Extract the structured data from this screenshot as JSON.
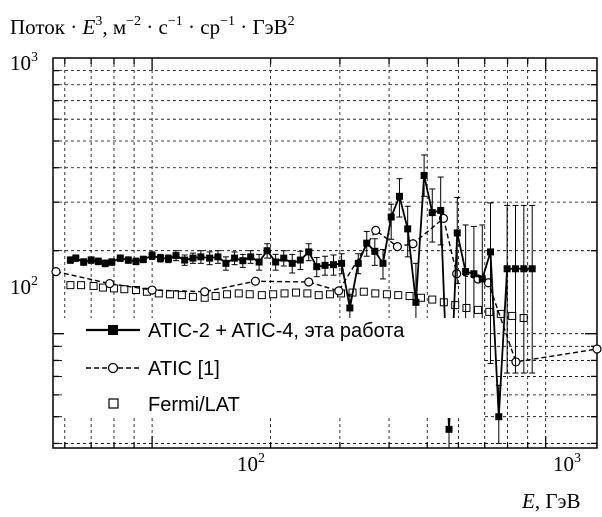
{
  "chart_data": {
    "type": "line",
    "scale": {
      "x": "log",
      "y": "log"
    },
    "xlim": [
      56,
      1350
    ],
    "ylim": [
      38.5,
      1000
    ],
    "grid": true,
    "legend_position": "bottom-left",
    "title": {
      "y_prefix": "Поток · ",
      "y_base": "E",
      "y_exp": "3",
      "y_units": ", м",
      "m_exp": "−2",
      "s_unit": " · с",
      "s_exp": "−1",
      "sr_unit": " · ср",
      "sr_exp": "−1",
      "gev_unit": " · ГэВ",
      "gev_exp": "2"
    },
    "xlabel": {
      "var": "E",
      "units": ", ГэВ"
    },
    "x_ticks": [
      {
        "value": 100,
        "base": "10",
        "exp": "2"
      },
      {
        "value": 1000,
        "base": "10",
        "exp": "3"
      }
    ],
    "y_ticks": [
      {
        "value": 100,
        "base": "10",
        "exp": "2"
      },
      {
        "value": 1000,
        "base": "10",
        "exp": "3"
      }
    ],
    "series": [
      {
        "name": "ATIC-2 + ATIC-4, эта работа",
        "style": "solid-filled-square",
        "color": "#000000",
        "x": [
          62,
          64,
          67,
          70,
          73,
          76,
          79,
          83,
          87,
          91,
          95,
          100,
          105,
          110,
          115,
          121,
          127,
          133,
          140,
          147,
          154,
          162,
          170,
          178,
          187,
          196,
          206,
          216,
          227,
          238,
          250,
          262,
          275,
          289,
          303,
          318,
          334,
          351,
          368,
          386,
          405,
          425,
          446,
          468,
          491,
          515,
          541,
          568,
          596,
          626,
          657,
          690,
          724,
          760,
          798,
          838,
          880,
          924
        ],
        "y": [
          185,
          188,
          182,
          185,
          183,
          180,
          182,
          188,
          185,
          183,
          186,
          192,
          188,
          187,
          192,
          185,
          188,
          190,
          188,
          190,
          180,
          188,
          184,
          190,
          182,
          200,
          182,
          188,
          180,
          185,
          198,
          175,
          177,
          178,
          180,
          124,
          180,
          213,
          199,
          180,
          265,
          315,
          240,
          130,
          375,
          275,
          280,
          45,
          232,
          168,
          165,
          158,
          198,
          50,
          172,
          172,
          172,
          172
        ],
        "err_low": [
          5,
          5,
          5,
          5,
          5,
          5,
          5,
          5,
          5,
          5,
          5,
          6,
          6,
          6,
          8,
          8,
          8,
          10,
          10,
          10,
          10,
          10,
          10,
          10,
          12,
          12,
          12,
          12,
          14,
          14,
          14,
          14,
          14,
          15,
          15,
          15,
          15,
          22,
          22,
          22,
          45,
          50,
          50,
          45,
          60,
          60,
          70,
          25,
          80,
          60,
          80,
          90,
          120,
          10,
          100,
          100,
          100,
          100
        ],
        "err_high": [
          5,
          5,
          5,
          5,
          5,
          5,
          5,
          5,
          5,
          5,
          5,
          6,
          6,
          6,
          8,
          8,
          8,
          10,
          10,
          10,
          10,
          10,
          10,
          10,
          12,
          12,
          12,
          12,
          14,
          14,
          14,
          14,
          14,
          15,
          15,
          15,
          15,
          22,
          22,
          22,
          30,
          50,
          50,
          50,
          70,
          60,
          90,
          30,
          80,
          80,
          80,
          90,
          100,
          15,
          120,
          120,
          120,
          120
        ]
      },
      {
        "name": "ATIC [1]",
        "style": "dashed-open-circle",
        "color": "#000000",
        "x": [
          57,
          78,
          100,
          136,
          183,
          250,
          298,
          370,
          420,
          460,
          550,
          594,
          673,
          715,
          840,
          1350
        ],
        "y": [
          168,
          152,
          144,
          142,
          155,
          154,
          143,
          237,
          207,
          212,
          262,
          165,
          158,
          153,
          79,
          88
        ]
      },
      {
        "name": "Fermi/LAT",
        "style": "open-square",
        "color": "#000000",
        "x": [
          62,
          66,
          71,
          75,
          80,
          85,
          91,
          97,
          104,
          111,
          119,
          127,
          136,
          145,
          155,
          166,
          177,
          190,
          203,
          217,
          232,
          248,
          265,
          283,
          302,
          323,
          345,
          369,
          395,
          422,
          451,
          482,
          515,
          551,
          589,
          629,
          673,
          719,
          769,
          822,
          879
        ],
        "y": [
          150,
          150,
          149,
          147,
          146,
          145,
          144,
          142,
          140,
          139,
          138,
          136,
          135,
          137,
          139,
          140,
          139,
          138,
          139,
          140,
          141,
          140,
          138,
          139,
          140,
          141,
          142,
          140,
          139,
          138,
          137,
          135,
          133,
          130,
          127,
          124,
          122,
          120,
          118,
          116,
          114
        ]
      }
    ]
  }
}
